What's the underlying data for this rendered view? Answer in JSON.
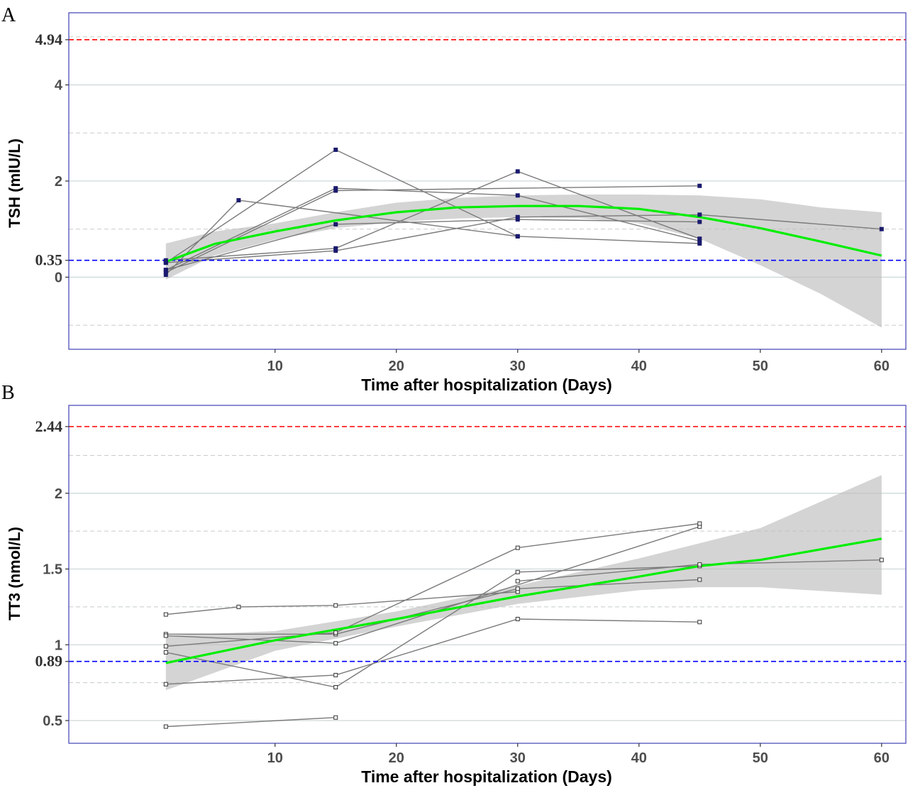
{
  "chart_data": [
    {
      "type": "line",
      "panel_label": "A",
      "xlabel": "Time after hospitalization (Days)",
      "ylabel": "TSH (mIU/L)",
      "xlim": [
        -7,
        62
      ],
      "ylim": [
        -1.5,
        5.5
      ],
      "xticks": [
        10,
        20,
        30,
        40,
        50,
        60
      ],
      "yticks": [
        {
          "value": 0,
          "label": "0"
        },
        {
          "value": 0.35,
          "label": "0.35"
        },
        {
          "value": 2,
          "label": "2"
        },
        {
          "value": 4,
          "label": "4"
        },
        {
          "value": 4.94,
          "label": "4.94"
        }
      ],
      "reference_lines": [
        {
          "value": 4.94,
          "color": "#ff0000",
          "label": "4.94"
        },
        {
          "value": 0.35,
          "color": "#0000ff",
          "label": "0.35"
        }
      ],
      "marker_color": "#1a1a6e",
      "marker_fill": true,
      "series": [
        {
          "x": [
            1,
            7,
            30,
            45
          ],
          "y": [
            0.05,
            1.6,
            0.85,
            0.7
          ]
        },
        {
          "x": [
            1,
            15,
            30
          ],
          "y": [
            0.3,
            2.65,
            0.85
          ]
        },
        {
          "x": [
            1,
            15,
            45
          ],
          "y": [
            0.1,
            1.8,
            1.9
          ]
        },
        {
          "x": [
            1,
            15,
            30,
            45
          ],
          "y": [
            0.15,
            1.85,
            1.7,
            0.75
          ]
        },
        {
          "x": [
            1,
            15,
            30,
            45
          ],
          "y": [
            0.15,
            1.1,
            1.2,
            1.15
          ]
        },
        {
          "x": [
            1,
            15,
            30,
            45,
            60
          ],
          "y": [
            0.3,
            0.55,
            1.25,
            1.3,
            1.0
          ]
        },
        {
          "x": [
            1,
            15,
            30,
            45
          ],
          "y": [
            0.35,
            0.6,
            2.2,
            0.8
          ]
        }
      ],
      "smooth": {
        "color": "#00ee00",
        "x": [
          1,
          5,
          10,
          15,
          20,
          25,
          30,
          35,
          40,
          45,
          50,
          55,
          60
        ],
        "y": [
          0.32,
          0.69,
          0.95,
          1.18,
          1.35,
          1.45,
          1.48,
          1.48,
          1.42,
          1.25,
          1.02,
          0.74,
          0.45
        ],
        "lower": [
          -0.05,
          0.45,
          0.78,
          1.02,
          1.15,
          1.22,
          1.25,
          1.23,
          1.12,
          0.8,
          0.25,
          -0.35,
          -1.05
        ],
        "upper": [
          0.7,
          0.95,
          1.12,
          1.35,
          1.55,
          1.65,
          1.7,
          1.72,
          1.72,
          1.7,
          1.62,
          1.45,
          1.35
        ]
      }
    },
    {
      "type": "line",
      "panel_label": "B",
      "xlabel": "Time after hospitalization (Days)",
      "ylabel": "TT3 (nmol/L)",
      "xlim": [
        -7,
        62
      ],
      "ylim": [
        0.35,
        2.58
      ],
      "xticks": [
        10,
        20,
        30,
        40,
        50,
        60
      ],
      "yticks": [
        {
          "value": 0.5,
          "label": "0.5"
        },
        {
          "value": 0.89,
          "label": "0.89"
        },
        {
          "value": 1,
          "label": "1"
        },
        {
          "value": 1.5,
          "label": "1.5"
        },
        {
          "value": 2,
          "label": "2"
        },
        {
          "value": 2.44,
          "label": "2.44"
        }
      ],
      "reference_lines": [
        {
          "value": 2.44,
          "color": "#ff0000",
          "label": "2.44"
        },
        {
          "value": 0.89,
          "color": "#0000ff",
          "label": "0.89"
        }
      ],
      "marker_color": "#333333",
      "marker_fill": false,
      "series": [
        {
          "x": [
            1,
            7,
            15,
            30
          ],
          "y": [
            1.2,
            1.25,
            1.26,
            1.35
          ]
        },
        {
          "x": [
            1,
            15,
            30,
            45
          ],
          "y": [
            1.07,
            1.07,
            1.37,
            1.43
          ]
        },
        {
          "x": [
            1,
            15,
            45
          ],
          "y": [
            1.06,
            1.01,
            1.78
          ]
        },
        {
          "x": [
            1,
            15,
            30,
            45
          ],
          "y": [
            0.99,
            1.08,
            1.64,
            1.8
          ]
        },
        {
          "x": [
            1,
            15,
            30,
            45
          ],
          "y": [
            0.95,
            0.72,
            1.48,
            1.52
          ]
        },
        {
          "x": [
            1,
            15,
            30,
            45
          ],
          "y": [
            0.74,
            0.8,
            1.17,
            1.15
          ]
        },
        {
          "x": [
            1,
            15
          ],
          "y": [
            0.46,
            0.52
          ]
        },
        {
          "x": [
            30,
            45,
            60
          ],
          "y": [
            1.42,
            1.53,
            1.56
          ]
        }
      ],
      "smooth": {
        "color": "#00ee00",
        "x": [
          1,
          10,
          20,
          30,
          40,
          45,
          50,
          60
        ],
        "y": [
          0.88,
          1.03,
          1.17,
          1.32,
          1.45,
          1.52,
          1.56,
          1.7
        ],
        "lower": [
          0.7,
          0.96,
          1.12,
          1.27,
          1.36,
          1.38,
          1.38,
          1.33
        ],
        "upper": [
          1.06,
          1.09,
          1.22,
          1.39,
          1.57,
          1.67,
          1.77,
          2.12
        ]
      }
    }
  ]
}
